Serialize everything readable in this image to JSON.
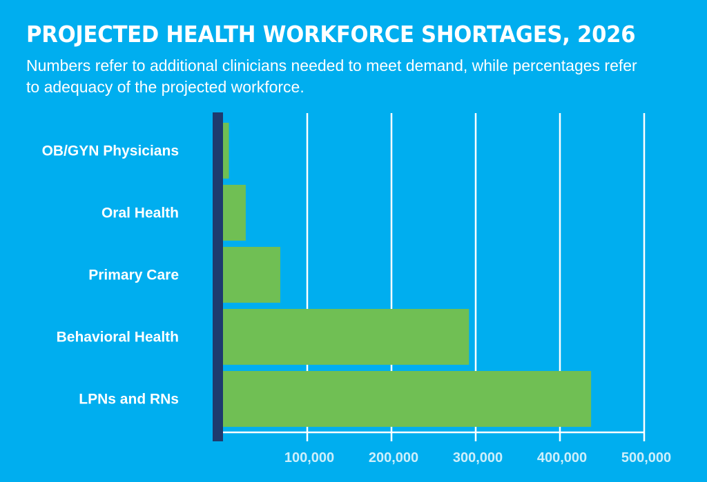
{
  "header": {
    "title": "PROJECTED HEALTH WORKFORCE SHORTAGES, 2026",
    "subtitle": "Numbers refer to additional clinicians needed to meet demand, while percentages refer to adequacy of the projected workforce."
  },
  "colors": {
    "background": "#00AEEF",
    "bar": "#70BF54",
    "baseline": "#1E3A6E",
    "gridline": "#FFFFFF",
    "tick_label": "#CDEFFB",
    "text": "#FFFFFF"
  },
  "chart_data": {
    "type": "bar",
    "orientation": "horizontal",
    "title": "PROJECTED HEALTH WORKFORCE SHORTAGES, 2026",
    "subtitle": "Numbers refer to additional clinicians needed to meet demand, while percentages refer to adequacy of the projected workforce.",
    "categories": [
      "OB/GYN Physicians",
      "Oral Health",
      "Primary Care",
      "Behavioral Health",
      "LPNs and RNs"
    ],
    "values": [
      7000,
      27000,
      68000,
      292000,
      437000
    ],
    "xlabel": "",
    "ylabel": "",
    "xlim": [
      0,
      500000
    ],
    "xticks": [
      100000,
      200000,
      300000,
      400000,
      500000
    ],
    "xtick_labels": [
      "100,000",
      "200,000",
      "300,000",
      "400,000",
      "500,000"
    ],
    "grid": true,
    "legend": "none"
  }
}
